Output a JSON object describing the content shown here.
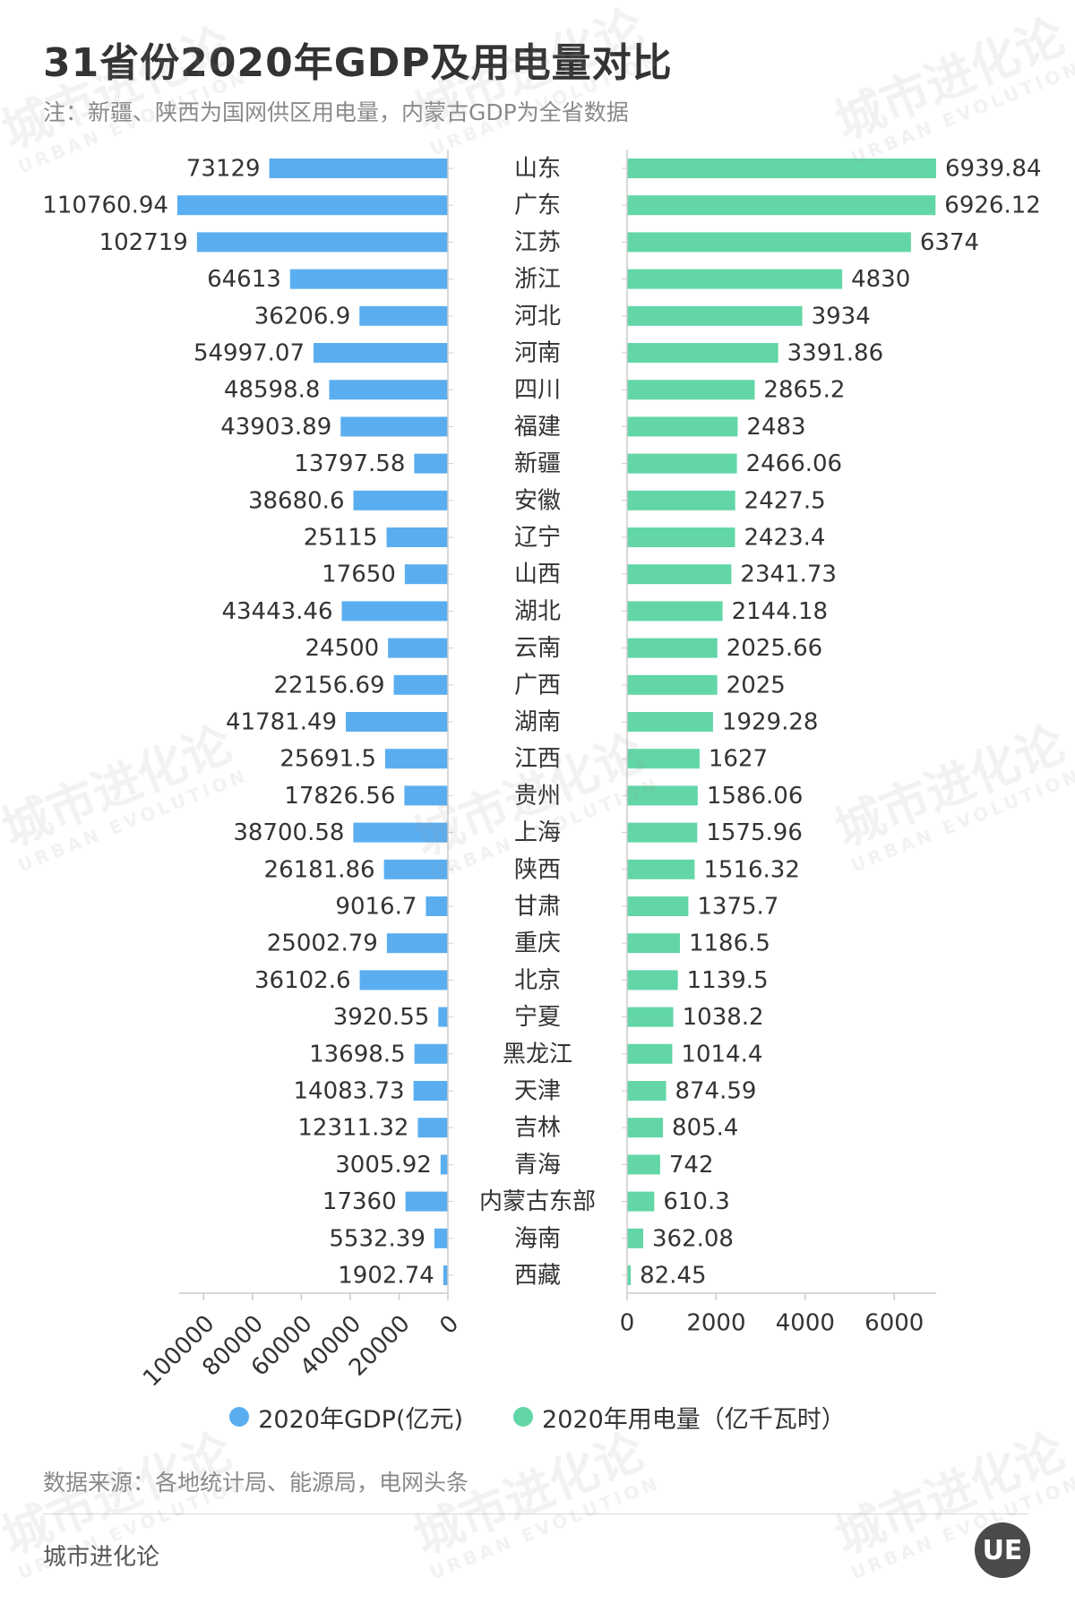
{
  "title": "31省份2020年GDP及用电量对比",
  "subtitle": "注：新疆、陕西为国网供区用电量，内蒙古GDP为全省数据",
  "source": "数据来源：各地统计局、能源局，电网头条",
  "brand": "城市进化论",
  "logo_text": "UE",
  "watermark": {
    "cn": "城市进化论",
    "en": "URBAN EVOLUTION"
  },
  "colors": {
    "gdp": "#5aaef0",
    "power": "#62d6a6",
    "axis": "#cccccc",
    "text": "#333333"
  },
  "legend": {
    "gdp_label": "2020年GDP(亿元)",
    "power_label": "2020年用电量（亿千瓦时）"
  },
  "chart_data": {
    "type": "bar",
    "orientation": "horizontal-butterfly",
    "categories": [
      "山东",
      "广东",
      "江苏",
      "浙江",
      "河北",
      "河南",
      "四川",
      "福建",
      "新疆",
      "安徽",
      "辽宁",
      "山西",
      "湖北",
      "云南",
      "广西",
      "湖南",
      "江西",
      "贵州",
      "上海",
      "陕西",
      "甘肃",
      "重庆",
      "北京",
      "宁夏",
      "黑龙江",
      "天津",
      "吉林",
      "青海",
      "内蒙古东部",
      "海南",
      "西藏"
    ],
    "series": [
      {
        "name": "2020年GDP(亿元)",
        "values": [
          "73129",
          "110760.94",
          "102719",
          "64613",
          "36206.9",
          "54997.07",
          "48598.8",
          "43903.89",
          "13797.58",
          "38680.6",
          "25115",
          "17650",
          "43443.46",
          "24500",
          "22156.69",
          "41781.49",
          "25691.5",
          "17826.56",
          "38700.58",
          "26181.86",
          "9016.7",
          "25002.79",
          "36102.6",
          "3920.55",
          "13698.5",
          "14083.73",
          "12311.32",
          "3005.92",
          "17360",
          "5532.39",
          "1902.74"
        ],
        "xlim": [
          0,
          110000
        ],
        "ticks": [
          "0",
          "20000",
          "40000",
          "60000",
          "80000",
          "100000"
        ],
        "tick_values": [
          0,
          20000,
          40000,
          60000,
          80000,
          100000
        ],
        "direction": "left"
      },
      {
        "name": "2020年用电量（亿千瓦时）",
        "values": [
          "6939.84",
          "6926.12",
          "6374",
          "4830",
          "3934",
          "3391.86",
          "2865.2",
          "2483",
          "2466.06",
          "2427.5",
          "2423.4",
          "2341.73",
          "2144.18",
          "2025.66",
          "2025",
          "1929.28",
          "1627",
          "1586.06",
          "1575.96",
          "1516.32",
          "1375.7",
          "1186.5",
          "1139.5",
          "1038.2",
          "1014.4",
          "874.59",
          "805.4",
          "742",
          "610.3",
          "362.08",
          "82.45"
        ],
        "xlim": [
          0,
          6940
        ],
        "ticks": [
          "0",
          "2000",
          "4000",
          "6000"
        ],
        "tick_values": [
          0,
          2000,
          4000,
          6000
        ],
        "direction": "right"
      }
    ],
    "legend_position": "bottom",
    "grid": false
  }
}
